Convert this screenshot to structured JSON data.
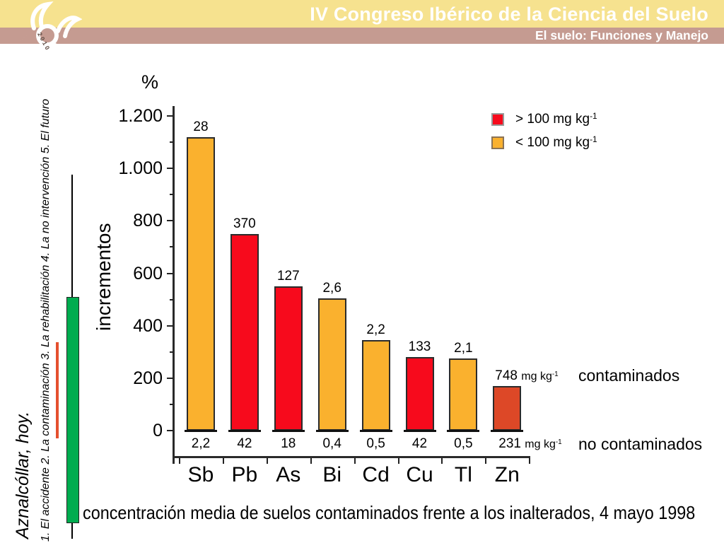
{
  "header": {
    "title": "IV Congreso Ibérico de la Ciencia del Suelo",
    "subtitle": "El suelo: Funciones y Manejo",
    "logo_year": "2010",
    "colors": {
      "band_yellow": "#F6E28F",
      "band_mauve": "#C59B91",
      "text": "#FFFFFF"
    }
  },
  "sidebar": {
    "title": "Aznalcóllar, hoy.",
    "outline": "1. El accidente   2. La contaminación   3. La rehabilitación   4. La no intervención   5. El futuro",
    "colors": {
      "timeline_green": "#00AC4F",
      "highlight_red": "#E5502E"
    }
  },
  "chart_data": {
    "type": "bar",
    "unit_label": "%",
    "ylabel": "incrementos",
    "categories": [
      "Sb",
      "Pb",
      "As",
      "Bi",
      "Cd",
      "Cu",
      "Tl",
      "Zn"
    ],
    "increments_pct": [
      1120,
      750,
      550,
      505,
      345,
      280,
      275,
      170
    ],
    "contaminated_mg_kg": [
      "28",
      "370",
      "127",
      "2,6",
      "2,2",
      "133",
      "2,1",
      "748"
    ],
    "uncontaminated_mg_kg": [
      "2,2",
      "42",
      "18",
      "0,4",
      "0,5",
      "42",
      "0,5",
      "231"
    ],
    "bar_colors": [
      "#FAB12E",
      "#F70A1C",
      "#F70A1C",
      "#FAB12E",
      "#FAB12E",
      "#F70A1C",
      "#FAB12E",
      "#DD4827"
    ],
    "ylim": [
      0,
      1200
    ],
    "ytick_labels": [
      "0",
      "200",
      "400",
      "600",
      "800",
      "1.000",
      "1.200"
    ],
    "unit": "mg kg",
    "exp": "-1",
    "legend": [
      {
        "label": "> 100 mg kg",
        "exp": "-1",
        "color": "#F70A1C"
      },
      {
        "label": "< 100 mg kg",
        "exp": "-1",
        "color": "#FAB12E"
      }
    ],
    "row_annotations": {
      "contaminated_label": "contaminados",
      "uncontaminated_label": "no contaminados"
    }
  },
  "caption": "concentración media de suelos contaminados frente a los inalterados, 4 mayo 1998"
}
